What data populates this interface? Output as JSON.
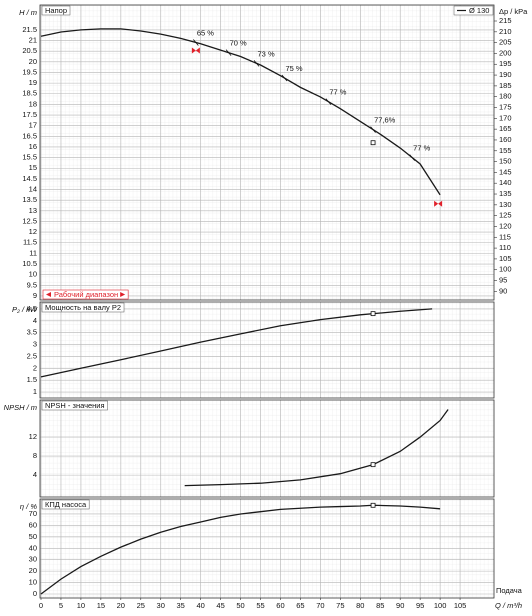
{
  "chart_data": [
    {
      "type": "line",
      "title": "Напор",
      "ylabel": "H / m",
      "y2label": "Δp / kPa",
      "x": [
        0,
        5,
        10,
        15,
        20,
        25,
        30,
        35,
        40,
        45,
        50,
        55,
        60,
        65,
        70,
        75,
        80,
        85,
        90,
        95,
        100
      ],
      "series": [
        {
          "name": "Ø 130",
          "color": "#1a1a1a",
          "values": [
            21.2,
            21.4,
            21.5,
            21.55,
            21.55,
            21.45,
            21.3,
            21.1,
            20.85,
            20.55,
            20.25,
            19.85,
            19.35,
            18.8,
            18.35,
            17.8,
            17.2,
            16.6,
            15.95,
            15.2,
            13.75
          ]
        }
      ],
      "ylim": [
        8.81,
        22.67
      ],
      "yticks": [
        9,
        9.5,
        10,
        10.5,
        11,
        11.5,
        12,
        12.5,
        13,
        13.5,
        14,
        14.5,
        15,
        15.5,
        16,
        16.5,
        17,
        17.5,
        18,
        18.5,
        19,
        19.5,
        20,
        20.5,
        21,
        21.5
      ],
      "y2lim": [
        86,
        222.4
      ],
      "y2ticks": [
        90,
        95,
        100,
        105,
        110,
        115,
        120,
        125,
        130,
        135,
        140,
        145,
        150,
        155,
        160,
        165,
        170,
        175,
        180,
        185,
        190,
        195,
        200,
        205,
        210,
        215
      ],
      "legend": "upper right",
      "grid": true,
      "efficiency_labels": [
        {
          "text": "65 %",
          "x": 38.8
        },
        {
          "text": "70 %",
          "x": 47
        },
        {
          "text": "73 %",
          "x": 54
        },
        {
          "text": "75 %",
          "x": 61
        },
        {
          "text": "77 %",
          "x": 72
        },
        {
          "text": "77,6%",
          "x": 83.2
        },
        {
          "text": "77 %",
          "x": 93
        }
      ],
      "operating_point": {
        "x": 83.2,
        "y": 16.2
      },
      "working_range": {
        "label": "Рабочий диапазон",
        "x": [
          38.8,
          99.5
        ]
      }
    },
    {
      "type": "line",
      "title": "Мощность на валу P2",
      "ylabel": "P₂ / kW",
      "x": [
        0,
        10,
        20,
        30,
        40,
        50,
        60,
        70,
        80,
        90,
        98
      ],
      "series": [
        {
          "color": "#1a1a1a",
          "values": [
            1.64,
            2.0,
            2.36,
            2.73,
            3.1,
            3.45,
            3.79,
            4.05,
            4.25,
            4.4,
            4.5
          ]
        }
      ],
      "ylim": [
        0.75,
        4.79
      ],
      "yticks": [
        1,
        1.5,
        2,
        2.5,
        3,
        3.5,
        4,
        4.5
      ],
      "grid": true,
      "operating_point": {
        "x": 83.2,
        "y": 4.3
      }
    },
    {
      "type": "line",
      "title": "NPSH - значения",
      "ylabel": "NPSH / m",
      "x": [
        36,
        45,
        55,
        65,
        75,
        83.2,
        90,
        95,
        100,
        102
      ],
      "series": [
        {
          "color": "#1a1a1a",
          "values": [
            1.8,
            2.0,
            2.3,
            3.0,
            4.3,
            6.2,
            9.0,
            12.0,
            15.5,
            17.8
          ]
        }
      ],
      "ylim": [
        -0.6,
        19.8
      ],
      "yticks": [
        4,
        8,
        12
      ],
      "grid": true,
      "operating_point": {
        "x": 83.2,
        "y": 6.2
      }
    },
    {
      "type": "line",
      "title": "КПД насоса",
      "ylabel": "η / %",
      "xlabel": "Q / m³/h",
      "xlabel2": "Подача",
      "x": [
        0,
        5,
        10,
        15,
        20,
        25,
        30,
        35,
        40,
        45,
        50,
        55,
        60,
        65,
        70,
        75,
        80,
        83.2,
        90,
        95,
        100
      ],
      "series": [
        {
          "color": "#1a1a1a",
          "values": [
            0,
            13,
            24,
            33,
            41,
            48,
            54,
            59,
            63,
            67,
            70,
            72,
            74,
            75,
            76,
            76.5,
            77,
            77.6,
            77,
            76,
            74.5
          ]
        }
      ],
      "ylim": [
        -3.5,
        83.1
      ],
      "yticks": [
        0,
        10,
        20,
        30,
        40,
        50,
        60,
        70
      ],
      "grid": true,
      "operating_point": {
        "x": 83.2,
        "y": 77.6
      },
      "xlim": [
        -0.25,
        113.5
      ],
      "xticks": [
        0,
        5,
        10,
        15,
        20,
        25,
        30,
        35,
        40,
        45,
        50,
        55,
        60,
        65,
        70,
        75,
        80,
        85,
        90,
        95,
        100,
        105
      ]
    }
  ]
}
